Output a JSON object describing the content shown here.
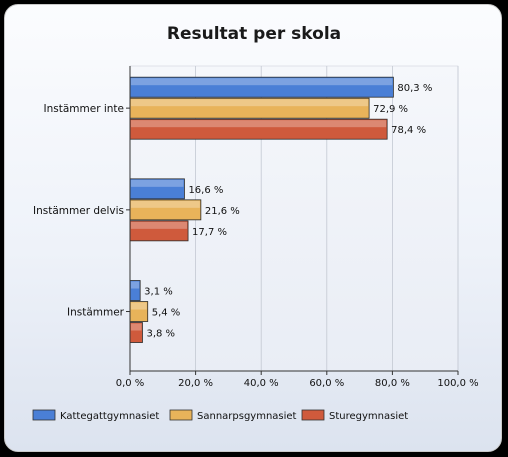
{
  "chart_data": {
    "type": "bar",
    "orientation": "horizontal",
    "title": "Resultat per skola",
    "categories": [
      "Instämmer inte",
      "Instämmer delvis",
      "Instämmer"
    ],
    "series": [
      {
        "name": "Kattegattgymnasiet",
        "values": [
          80.3,
          16.6,
          3.1
        ],
        "labels": [
          "80,3 %",
          "16,6 %",
          "3,1 %"
        ],
        "color": "#4a7fd6"
      },
      {
        "name": "Sannarpsgymnasiet",
        "values": [
          72.9,
          21.6,
          5.4
        ],
        "labels": [
          "72,9 %",
          "21,6 %",
          "5,4 %"
        ],
        "color": "#e8b35a"
      },
      {
        "name": "Sturegymnasiet",
        "values": [
          78.4,
          17.7,
          3.8
        ],
        "labels": [
          "78,4 %",
          "17,7 %",
          "3,8 %"
        ],
        "color": "#cf5a3c"
      }
    ],
    "xlim": [
      0,
      100
    ],
    "xticks": [
      0,
      20,
      40,
      60,
      80,
      100
    ],
    "xtick_labels": [
      "0,0 %",
      "20,0 %",
      "40,0 %",
      "60,0 %",
      "80,0 %",
      "100,0 %"
    ],
    "grid": true,
    "legend": "bottom"
  }
}
